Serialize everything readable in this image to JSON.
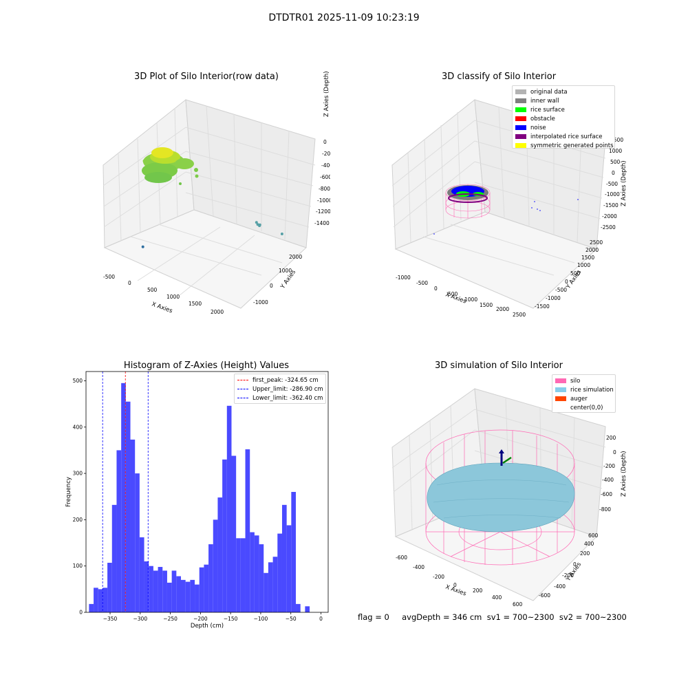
{
  "suptitle": "DTDTR01 2025-11-09 10:23:19",
  "footer": "flag = 0     avgDepth = 346 cm  sv1 = 700~2300  sv2 = 700~2300",
  "chart_data": [
    {
      "type": "scatter",
      "title": "3D Plot of Silo Interior(row data)",
      "xlabel": "X Axies",
      "ylabel": "Y Axies",
      "zlabel": "Z Axies (Depth)",
      "x_ticks": [
        "-500",
        "0",
        "500",
        "1000",
        "1500",
        "2000"
      ],
      "y_ticks": [
        "-1000",
        "0",
        "1000",
        "2000"
      ],
      "z_ticks": [
        "0",
        "-200",
        "-400",
        "-600",
        "-800",
        "-1000",
        "-1200",
        "-1400"
      ],
      "colormap": [
        "#2f6fa0",
        "#56a0a6",
        "#7fcf4a",
        "#e6e620"
      ],
      "points": [
        {
          "x": 0,
          "y": -1100,
          "z": -1450
        },
        {
          "x": 1850,
          "y": 500,
          "z": -1050
        },
        {
          "x": 1870,
          "y": 520,
          "z": -1110
        },
        {
          "x": 1900,
          "y": 560,
          "z": -1120
        },
        {
          "x": 1960,
          "y": 400,
          "z": -1190
        },
        {
          "x": 2250,
          "y": 900,
          "z": -1400
        }
      ]
    },
    {
      "type": "scatter",
      "title": "3D classify of Silo Interior",
      "xlabel": "X Axies",
      "ylabel": "Y Axies",
      "zlabel": "Z Axies (Depth)",
      "x_ticks": [
        "-1000",
        "-500",
        "0",
        "500",
        "1000",
        "1500",
        "2000",
        "2500"
      ],
      "y_ticks": [
        "-1500",
        "-1000",
        "-500",
        "0",
        "500",
        "1000",
        "1500",
        "2000",
        "2500"
      ],
      "z_ticks": [
        "1500",
        "1000",
        "500",
        "0",
        "-500",
        "-1000",
        "-1500",
        "-2000",
        "-2500"
      ],
      "legend": [
        {
          "label": "original data",
          "color": "#b3b3b3"
        },
        {
          "label": "inner wall",
          "color": "#808080"
        },
        {
          "label": "rice surface",
          "color": "#00ff00"
        },
        {
          "label": "obstacle",
          "color": "#ff0000"
        },
        {
          "label": "noise",
          "color": "#0000ff"
        },
        {
          "label": "interpolated rice surface",
          "color": "#800080"
        },
        {
          "label": "symmetric generated points",
          "color": "#ffff00"
        }
      ]
    },
    {
      "type": "bar",
      "title": "Histogram of Z-Axies (Height) Values",
      "xlabel": "Depth (cm)",
      "ylabel": "Frequency",
      "xlim": [
        -390,
        12
      ],
      "ylim": [
        0,
        520
      ],
      "x_ticks": [
        -350,
        -300,
        -250,
        -200,
        -150,
        -100,
        -50,
        0
      ],
      "y_ticks": [
        0,
        100,
        200,
        300,
        400,
        500
      ],
      "bin_start": -385,
      "bin_width": 7.63,
      "values": [
        18,
        53,
        50,
        53,
        107,
        232,
        350,
        495,
        455,
        373,
        300,
        162,
        110,
        100,
        90,
        98,
        90,
        64,
        90,
        78,
        70,
        66,
        70,
        60,
        97,
        103,
        147,
        200,
        248,
        330,
        446,
        338,
        160,
        160,
        352,
        173,
        166,
        147,
        85,
        108,
        120,
        170,
        232,
        188,
        260,
        18,
        0,
        13
      ],
      "bar_color": "#4a4aff",
      "vlines": [
        {
          "label": "first_peak: -324.65 cm",
          "x": -324.65,
          "color": "#ff0000"
        },
        {
          "label": "Upper_limit: -286.90 cm",
          "x": -286.9,
          "color": "#0000ff"
        },
        {
          "label": "Lower_limit: -362.40 cm",
          "x": -362.4,
          "color": "#0000ff"
        }
      ]
    },
    {
      "type": "area",
      "title": "3D simulation of Silo Interior",
      "xlabel": "X Axies",
      "ylabel": "Y Axies",
      "zlabel": "Z Axies (Depth)",
      "x_ticks": [
        "-600",
        "-400",
        "-200",
        "0",
        "200",
        "400",
        "600"
      ],
      "y_ticks": [
        "-600",
        "-400",
        "-200",
        "0",
        "200",
        "400",
        "600"
      ],
      "z_ticks": [
        "200",
        "0",
        "-200",
        "-400",
        "-600",
        "-800"
      ],
      "legend": [
        {
          "label": "silo",
          "color": "#ff69b4"
        },
        {
          "label": "rice simulation",
          "color": "#87ceeb"
        },
        {
          "label": "auger",
          "color": "#ff4500"
        },
        {
          "label": "center(0,0)",
          "color": "#ffffff"
        }
      ]
    }
  ]
}
